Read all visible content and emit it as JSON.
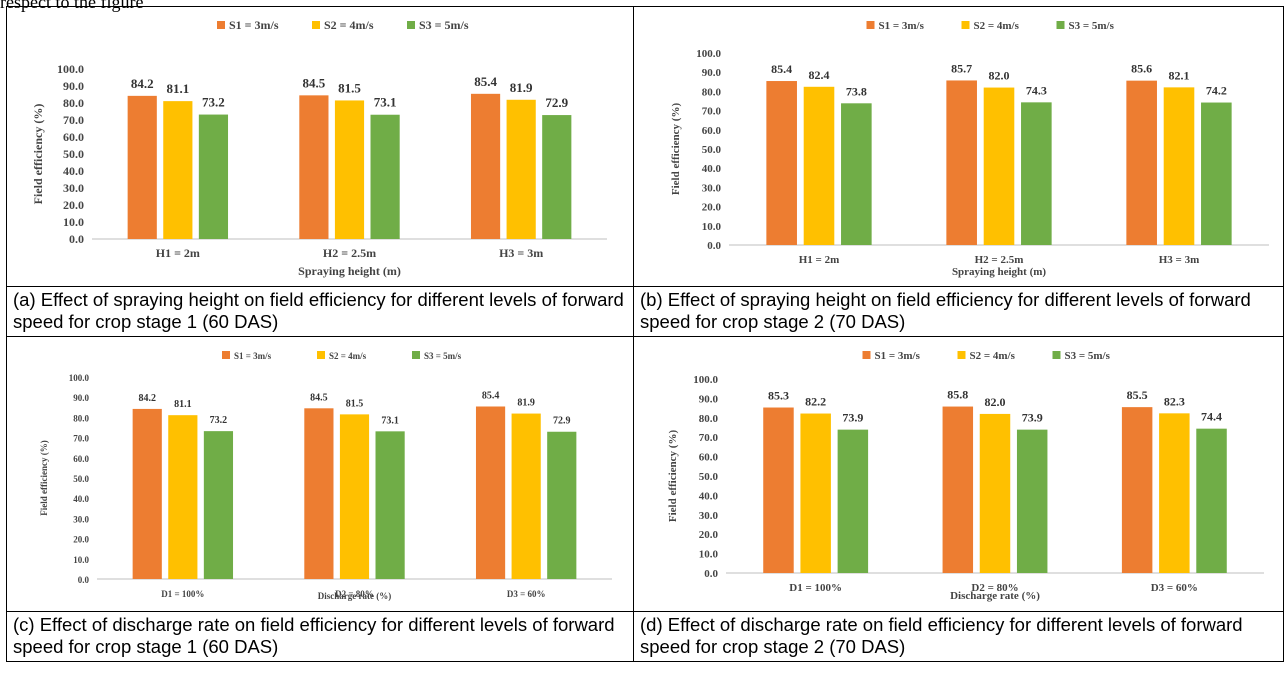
{
  "top_text": "respect to the figure",
  "colors": {
    "s1": "#ED7D31",
    "s2": "#FFC000",
    "s3": "#70AD47"
  },
  "captions": {
    "a": "(a) Effect of spraying height on field efficiency for different levels of forward speed for crop stage 1 (60 DAS)",
    "b": "(b) Effect of spraying height on field efficiency for different levels of forward speed for crop stage 2 (70 DAS)",
    "c": "(c) Effect of discharge rate on field efficiency for different levels of forward speed for crop stage 1 (60 DAS)",
    "d": "(d) Effect of discharge rate on field efficiency for different levels of forward speed for crop stage 2 (70 DAS)"
  },
  "chart_data": [
    {
      "id": "a",
      "type": "bar",
      "title": "",
      "xlabel": "Spraying height (m)",
      "ylabel": "Field efficiency (%)",
      "ylim": [
        0,
        100
      ],
      "yticks": [
        "0.0",
        "10.0",
        "20.0",
        "30.0",
        "40.0",
        "50.0",
        "60.0",
        "70.0",
        "80.0",
        "90.0",
        "100.0"
      ],
      "grid": false,
      "legend": "top",
      "categories": [
        "H1 = 2m",
        "H2 = 2.5m",
        "H3 = 3m"
      ],
      "series": [
        {
          "name": "S1 = 3m/s",
          "values": [
            84.2,
            84.5,
            85.4
          ],
          "labels": [
            "84.2",
            "84.5",
            "85.4"
          ]
        },
        {
          "name": "S2 = 4m/s",
          "values": [
            81.1,
            81.5,
            81.9
          ],
          "labels": [
            "81.1",
            "81.5",
            "81.9"
          ]
        },
        {
          "name": "S3 = 5m/s",
          "values": [
            73.2,
            73.1,
            72.9
          ],
          "labels": [
            "73.2",
            "73.1",
            "72.9"
          ]
        }
      ]
    },
    {
      "id": "b",
      "type": "bar",
      "title": "",
      "xlabel": "Spraying height (m)",
      "ylabel": "Field efficiency (%)",
      "ylim": [
        0,
        100
      ],
      "yticks": [
        "0.0",
        "10.0",
        "20.0",
        "30.0",
        "40.0",
        "50.0",
        "60.0",
        "70.0",
        "80.0",
        "90.0",
        "100.0"
      ],
      "grid": false,
      "legend": "top",
      "categories": [
        "H1 = 2m",
        "H2 = 2.5m",
        "H3 = 3m"
      ],
      "series": [
        {
          "name": "S1 = 3m/s",
          "values": [
            85.4,
            85.7,
            85.6
          ],
          "labels": [
            "85.4",
            "85.7",
            "85.6"
          ]
        },
        {
          "name": "S2 = 4m/s",
          "values": [
            82.4,
            82.0,
            82.1
          ],
          "labels": [
            "82.4",
            "82.0",
            "82.1"
          ]
        },
        {
          "name": "S3 = 5m/s",
          "values": [
            73.8,
            74.3,
            74.2
          ],
          "labels": [
            "73.8",
            "74.3",
            "74.2"
          ]
        }
      ]
    },
    {
      "id": "c",
      "type": "bar",
      "title": "",
      "xlabel": "Discharge rate (%)",
      "ylabel": "Field efficiency (%)",
      "ylim": [
        0,
        100
      ],
      "yticks": [
        "0.0",
        "10.0",
        "20.0",
        "30.0",
        "40.0",
        "50.0",
        "60.0",
        "70.0",
        "80.0",
        "90.0",
        "100.0"
      ],
      "grid": false,
      "legend": "top",
      "categories": [
        "D1 = 100%",
        "D2 = 80%",
        "D3 = 60%"
      ],
      "series": [
        {
          "name": "S1 = 3m/s",
          "values": [
            84.2,
            84.5,
            85.4
          ],
          "labels": [
            "84.2",
            "84.5",
            "85.4"
          ]
        },
        {
          "name": "S2 = 4m/s",
          "values": [
            81.1,
            81.5,
            81.9
          ],
          "labels": [
            "81.1",
            "81.5",
            "81.9"
          ]
        },
        {
          "name": "S3 = 5m/s",
          "values": [
            73.2,
            73.1,
            72.9
          ],
          "labels": [
            "73.2",
            "73.1",
            "72.9"
          ]
        }
      ]
    },
    {
      "id": "d",
      "type": "bar",
      "title": "",
      "xlabel": "Discharge rate (%)",
      "ylabel": "Field efficiency (%)",
      "ylim": [
        0,
        100
      ],
      "yticks": [
        "0.0",
        "10.0",
        "20.0",
        "30.0",
        "40.0",
        "50.0",
        "60.0",
        "70.0",
        "80.0",
        "90.0",
        "100.0"
      ],
      "grid": false,
      "legend": "top",
      "categories": [
        "D1 = 100%",
        "D2 = 80%",
        "D3 = 60%"
      ],
      "series": [
        {
          "name": "S1 = 3m/s",
          "values": [
            85.3,
            85.8,
            85.5
          ],
          "labels": [
            "85.3",
            "85.8",
            "85.5"
          ]
        },
        {
          "name": "S2 = 4m/s",
          "values": [
            82.2,
            82.0,
            82.3
          ],
          "labels": [
            "82.2",
            "82.0",
            "82.3"
          ]
        },
        {
          "name": "S3 = 5m/s",
          "values": [
            73.9,
            73.9,
            74.4
          ],
          "labels": [
            "73.9",
            "73.9",
            "74.4"
          ]
        }
      ]
    }
  ]
}
